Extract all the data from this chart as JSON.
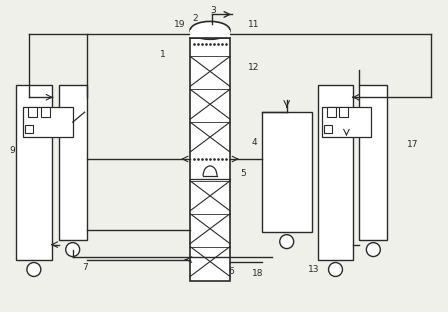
{
  "bg_color": "#f0f0eb",
  "line_color": "#2a2a2a",
  "figsize": [
    4.48,
    3.12
  ],
  "dpi": 100,
  "labels": [
    [
      192,
      294,
      "2"
    ],
    [
      210,
      302,
      "3"
    ],
    [
      248,
      288,
      "11"
    ],
    [
      174,
      288,
      "19"
    ],
    [
      160,
      258,
      "1"
    ],
    [
      248,
      245,
      "12"
    ],
    [
      252,
      170,
      "4"
    ],
    [
      240,
      138,
      "5"
    ],
    [
      82,
      44,
      "7"
    ],
    [
      228,
      40,
      "6"
    ],
    [
      252,
      38,
      "18"
    ],
    [
      308,
      42,
      "13"
    ],
    [
      8,
      162,
      "9"
    ],
    [
      408,
      168,
      "17"
    ]
  ]
}
